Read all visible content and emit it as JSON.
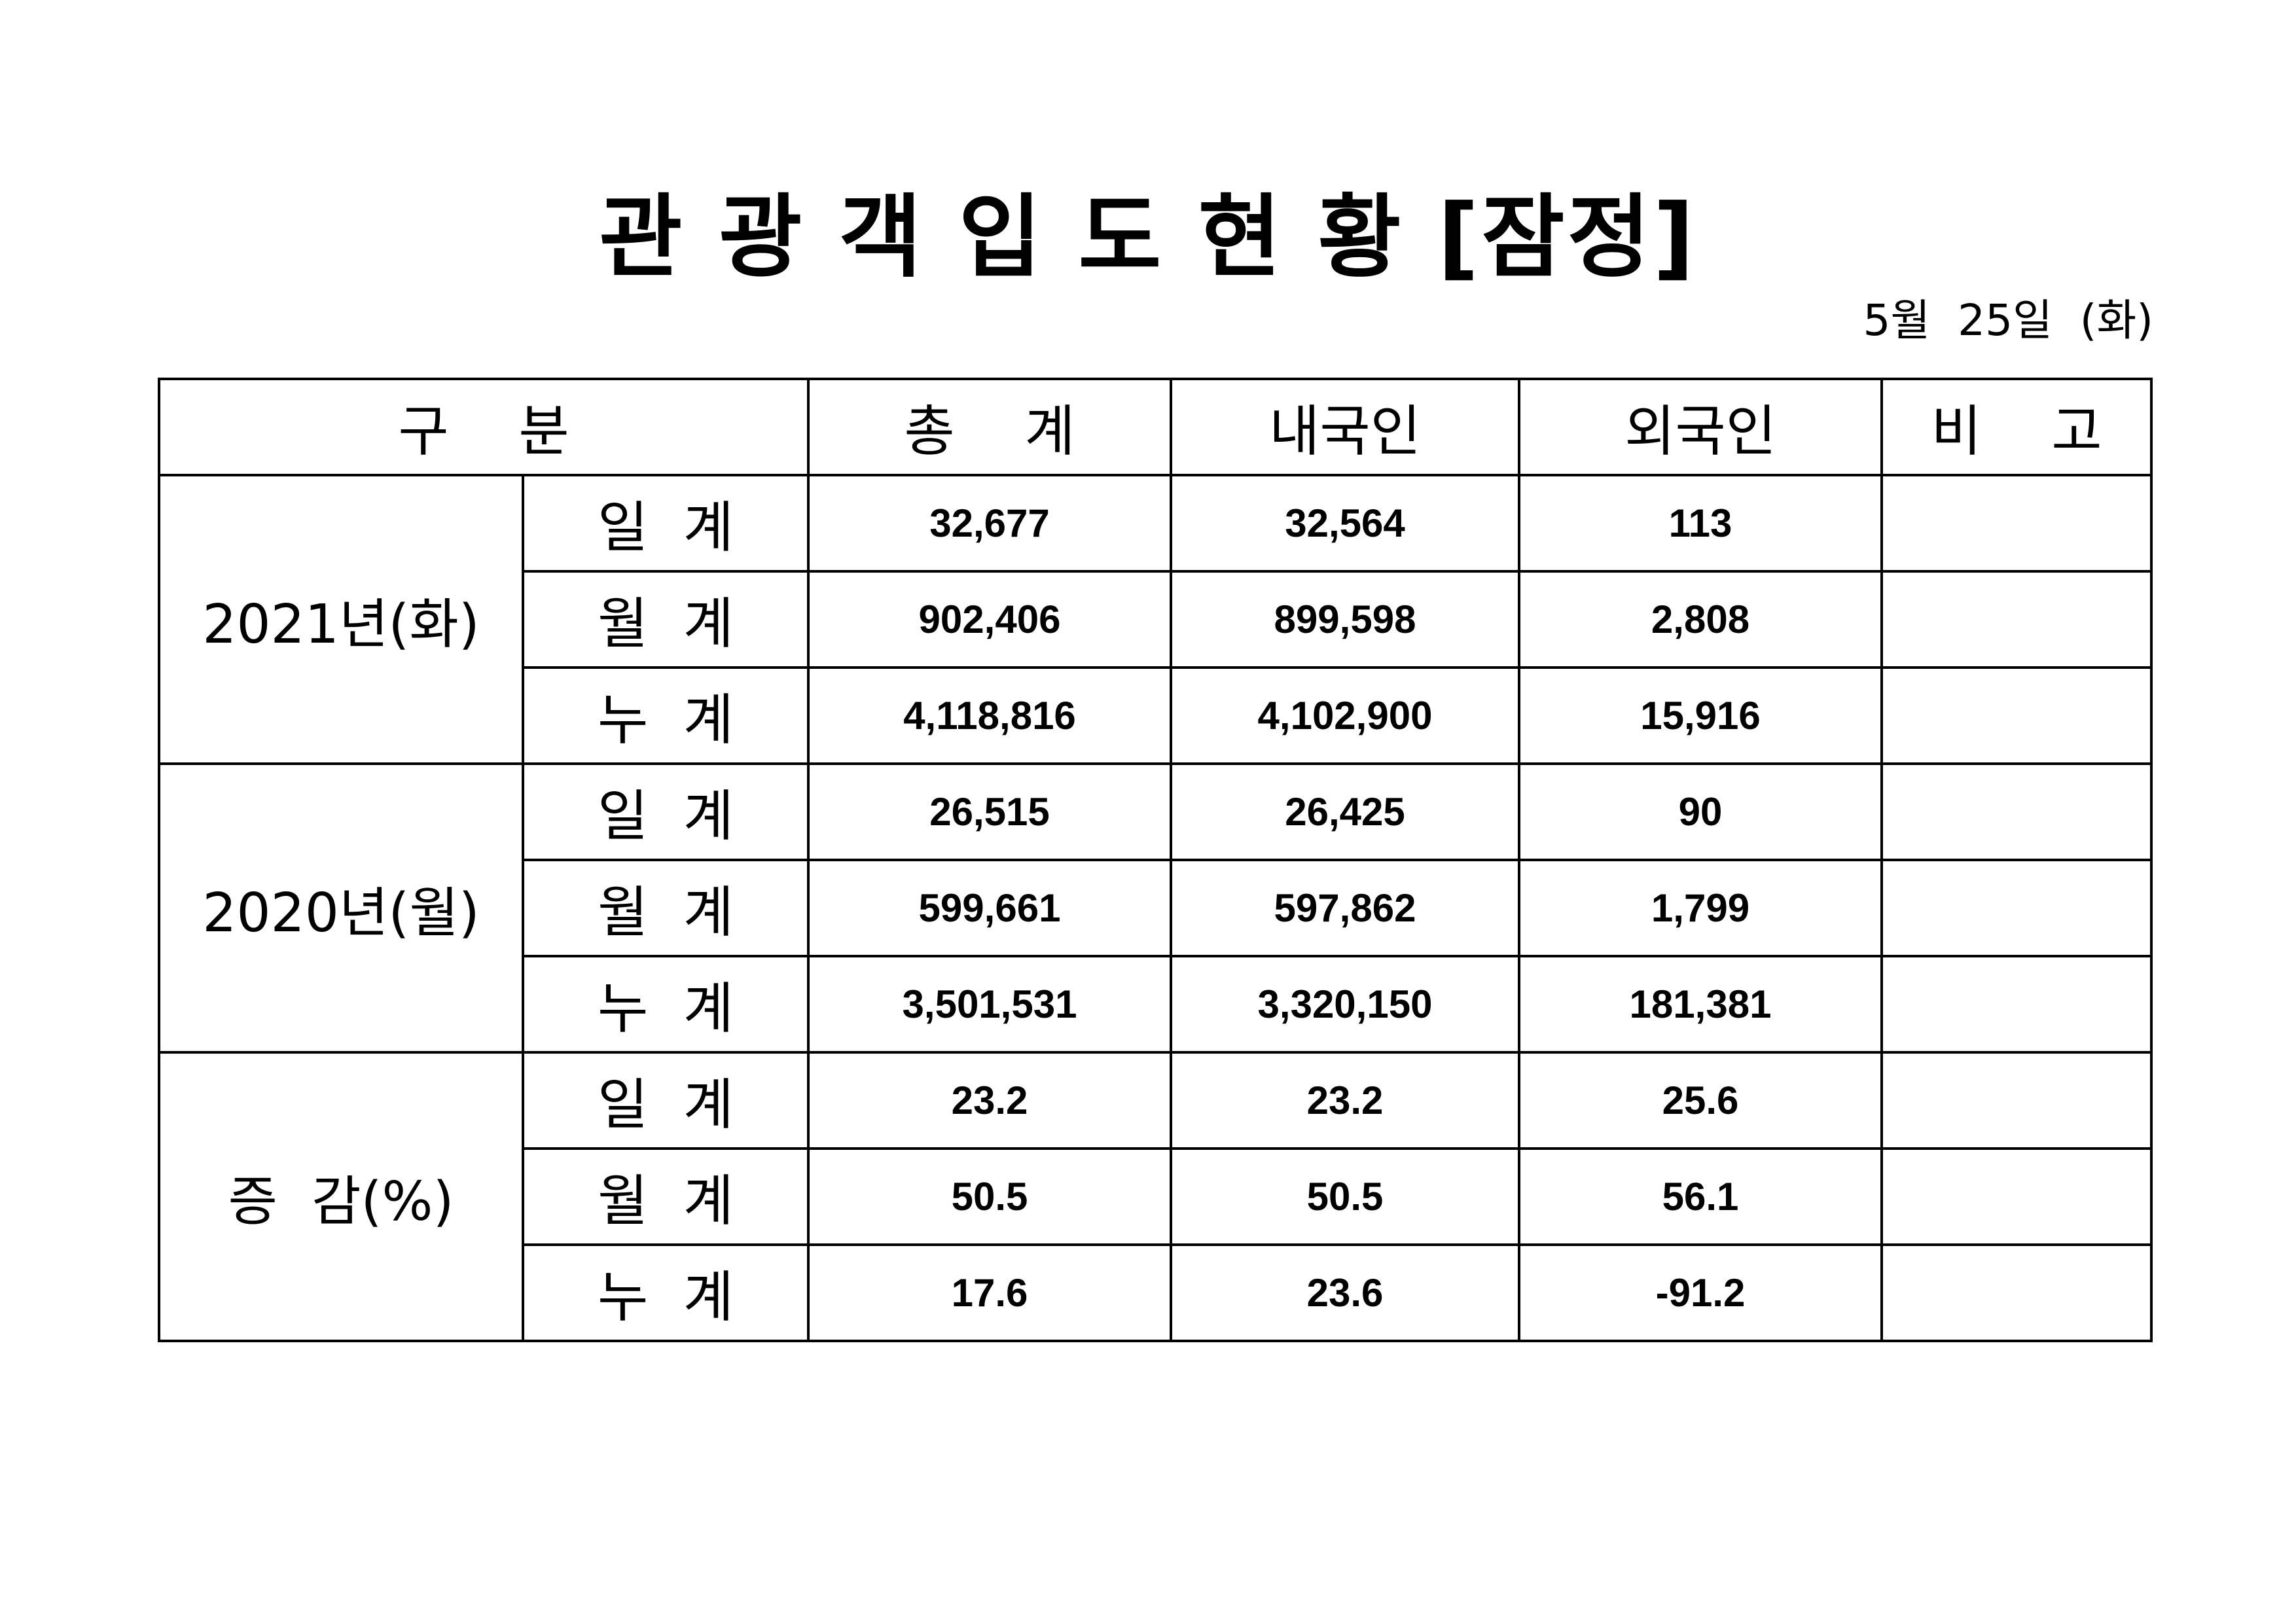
{
  "document": {
    "title": "관 광 객 입 도 현 황 [잠정]",
    "date": "5월  25일  (화)"
  },
  "table": {
    "headers": {
      "category": "구    분",
      "total": "총    계",
      "domestic": "내국인",
      "foreign": "외국인",
      "remarks": "비    고"
    },
    "groups": [
      {
        "label": "2021년(화)",
        "rows": [
          {
            "label": "일  계",
            "total": "32,677",
            "domestic": "32,564",
            "foreign": "113",
            "remarks": ""
          },
          {
            "label": "월  계",
            "total": "902,406",
            "domestic": "899,598",
            "foreign": "2,808",
            "remarks": ""
          },
          {
            "label": "누  계",
            "total": "4,118,816",
            "domestic": "4,102,900",
            "foreign": "15,916",
            "remarks": ""
          }
        ]
      },
      {
        "label": "2020년(월)",
        "rows": [
          {
            "label": "일  계",
            "total": "26,515",
            "domestic": "26,425",
            "foreign": "90",
            "remarks": ""
          },
          {
            "label": "월  계",
            "total": "599,661",
            "domestic": "597,862",
            "foreign": "1,799",
            "remarks": ""
          },
          {
            "label": "누  계",
            "total": "3,501,531",
            "domestic": "3,320,150",
            "foreign": "181,381",
            "remarks": ""
          }
        ]
      },
      {
        "label": "증  감(%)",
        "rows": [
          {
            "label": "일  계",
            "total": "23.2",
            "domestic": "23.2",
            "foreign": "25.6",
            "remarks": ""
          },
          {
            "label": "월  계",
            "total": "50.5",
            "domestic": "50.5",
            "foreign": "56.1",
            "remarks": ""
          },
          {
            "label": "누  계",
            "total": "17.6",
            "domestic": "23.6",
            "foreign": "-91.2",
            "remarks": ""
          }
        ]
      }
    ]
  }
}
